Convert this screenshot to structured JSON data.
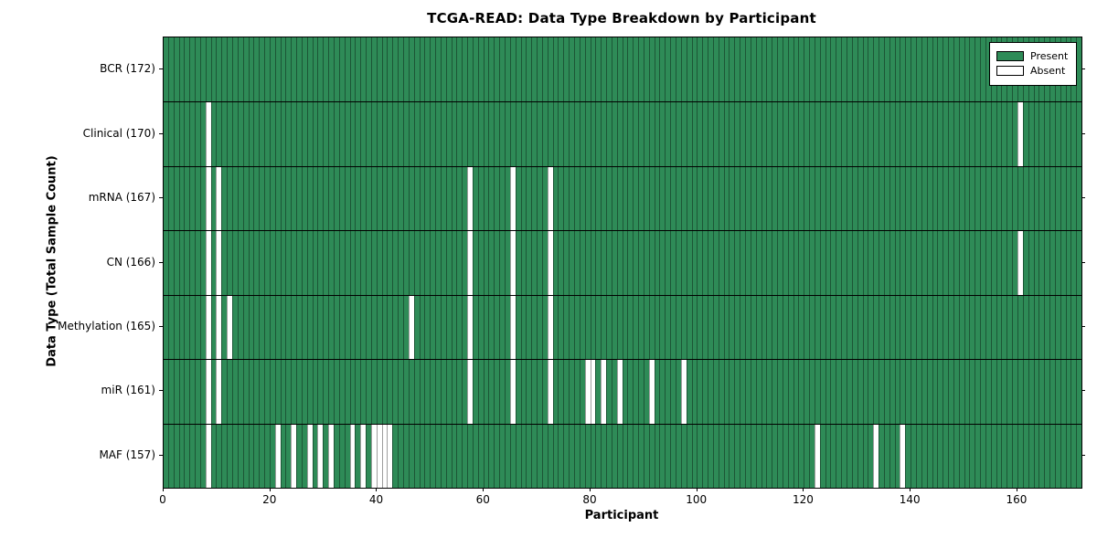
{
  "chart_data": {
    "type": "heatmap",
    "title": "TCGA-READ: Data Type Breakdown by Participant",
    "xlabel": "Participant",
    "ylabel": "Data Type (Total Sample Count)",
    "n_participants": 172,
    "x_ticks": [
      0,
      20,
      40,
      60,
      80,
      100,
      120,
      140,
      160
    ],
    "x_range": [
      0,
      172
    ],
    "grid": false,
    "legend_position": "upper right",
    "legend": [
      {
        "label": "Present",
        "color": "#2e8b57"
      },
      {
        "label": "Absent",
        "color": "#ffffff"
      }
    ],
    "colors": {
      "present": "#2e8b57",
      "absent": "#ffffff",
      "cell_edge": "rgba(0,0,0,0.38)",
      "row_separator": "#000000"
    },
    "rows": [
      {
        "label": "BCR (172)",
        "data_type": "BCR",
        "total": 172,
        "absent_participants": []
      },
      {
        "label": "Clinical (170)",
        "data_type": "Clinical",
        "total": 170,
        "absent_participants": [
          8,
          160
        ]
      },
      {
        "label": "mRNA (167)",
        "data_type": "mRNA",
        "total": 167,
        "absent_participants": [
          8,
          10,
          57,
          65,
          72
        ]
      },
      {
        "label": "CN (166)",
        "data_type": "CN",
        "total": 166,
        "absent_participants": [
          8,
          10,
          57,
          65,
          72,
          160
        ]
      },
      {
        "label": "Methylation (165)",
        "data_type": "Methylation",
        "total": 165,
        "absent_participants": [
          8,
          10,
          12,
          46,
          57,
          65,
          72
        ]
      },
      {
        "label": "miR (161)",
        "data_type": "miR",
        "total": 161,
        "absent_participants": [
          8,
          10,
          57,
          65,
          72,
          79,
          80,
          82,
          85,
          91,
          97
        ]
      },
      {
        "label": "MAF (157)",
        "data_type": "MAF",
        "total": 157,
        "absent_participants": [
          8,
          21,
          24,
          27,
          29,
          31,
          35,
          37,
          39,
          40,
          41,
          42,
          122,
          133,
          138
        ]
      }
    ]
  }
}
